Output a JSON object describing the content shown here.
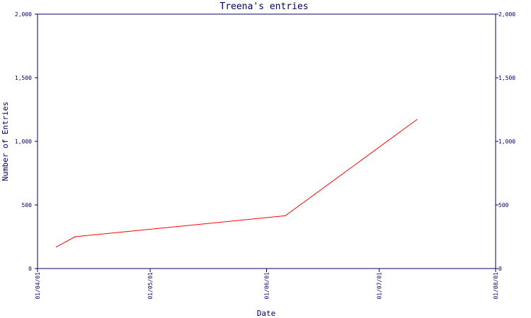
{
  "chart_data": {
    "type": "line",
    "title": "Treena's entries",
    "xlabel": "Date",
    "ylabel": "Number of Entries",
    "x_tick_labels": [
      "01/04/01",
      "01/05/01",
      "01/06/01",
      "01/07/01",
      "01/08/01"
    ],
    "x_range": [
      "2001-04-01",
      "2001-08-01"
    ],
    "y_ticks": [
      0,
      500,
      1000,
      1500,
      2000
    ],
    "y_tick_labels": [
      "0",
      "500",
      "1,000",
      "1,500",
      "2,000"
    ],
    "ylim": [
      0,
      2000
    ],
    "grid": false,
    "series": [
      {
        "color": "#ff0000",
        "points": [
          {
            "x": "2001-04-06",
            "y": 170
          },
          {
            "x": "2001-04-11",
            "y": 250
          },
          {
            "x": "2001-06-06",
            "y": 415
          },
          {
            "x": "2001-07-11",
            "y": 1170
          }
        ]
      }
    ],
    "colors": {
      "axis": "#000066",
      "line": "#ff0000"
    }
  }
}
